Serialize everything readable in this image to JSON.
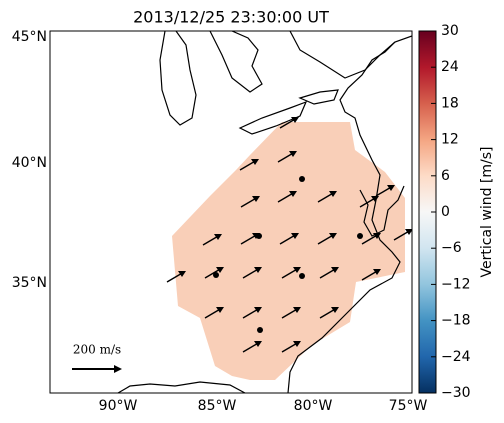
{
  "title": "2013/12/25 23:30:00 UT",
  "map": {
    "lat_labels": [
      "45°N",
      "40°N",
      "35°N"
    ],
    "lon_labels": [
      "90°W",
      "85°W",
      "80°W",
      "75°W"
    ],
    "scale_label": "200 m/s"
  },
  "colorbar": {
    "label": "Vertical wind [m/s]",
    "lim": [
      -30,
      30
    ],
    "ticks": [
      30,
      24,
      18,
      12,
      6,
      0,
      {
        "value": -6,
        "label": "−6"
      },
      {
        "value": -12,
        "label": "−12"
      },
      {
        "value": -18,
        "label": "−18"
      },
      {
        "value": -24,
        "label": "−24"
      },
      {
        "value": -30,
        "label": "−30"
      }
    ]
  }
}
